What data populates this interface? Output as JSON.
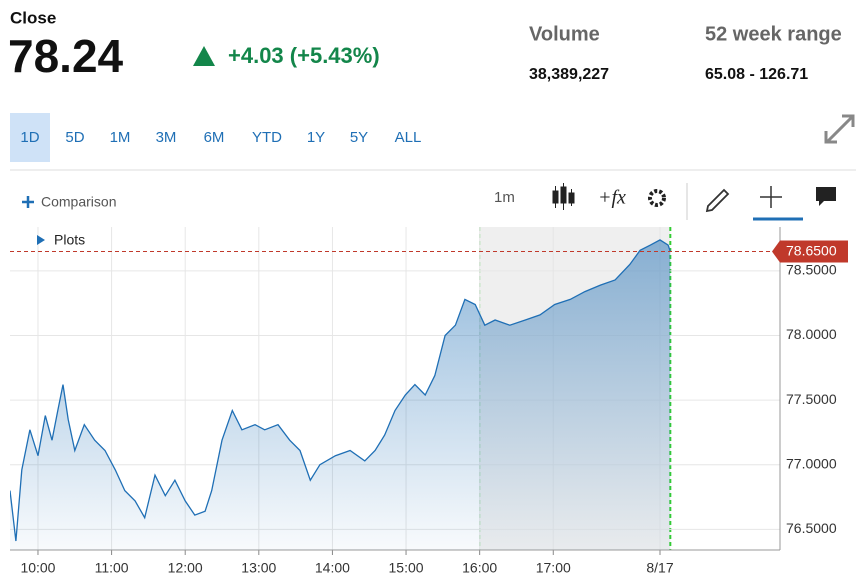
{
  "header": {
    "close_label": "Close",
    "price": "78.24",
    "change": "+4.03 (+5.43%)",
    "volume_label": "Volume",
    "volume": "38,389,227",
    "range_label": "52 week range",
    "range": "65.08 - 126.71"
  },
  "tabs": [
    "1D",
    "5D",
    "1M",
    "3M",
    "6M",
    "YTD",
    "1Y",
    "5Y",
    "ALL"
  ],
  "toolbar": {
    "comparison": "Comparison",
    "interval": "1m",
    "plots": "Plots"
  },
  "chart_data": {
    "type": "area",
    "series": [
      {
        "color": "#1f6fb5",
        "x": [
          9.62,
          9.7,
          9.78,
          9.89,
          10.0,
          10.1,
          10.19,
          10.27,
          10.34,
          10.41,
          10.5,
          10.63,
          10.77,
          10.91,
          11.05,
          11.18,
          11.32,
          11.45,
          11.59,
          11.73,
          11.86,
          12.0,
          12.13,
          12.27,
          12.36,
          12.5,
          12.64,
          12.77,
          12.95,
          13.08,
          13.26,
          13.42,
          13.56,
          13.7,
          13.83,
          14.04,
          14.24,
          14.44,
          14.58,
          14.71,
          14.85,
          14.99,
          15.12,
          15.26,
          15.39,
          15.53,
          15.67,
          15.8,
          15.94,
          16.07,
          16.21,
          16.41,
          16.62,
          16.82,
          17.02,
          17.23,
          17.43,
          17.64,
          17.84,
          18.04,
          18.18,
          18.32,
          18.45,
          18.56,
          18.59
        ],
        "values": [
          76.8,
          76.41,
          76.96,
          77.27,
          77.07,
          77.38,
          77.19,
          77.42,
          77.62,
          77.35,
          77.11,
          77.31,
          77.19,
          77.11,
          76.96,
          76.8,
          76.72,
          76.59,
          76.92,
          76.76,
          76.88,
          76.72,
          76.61,
          76.64,
          76.8,
          77.19,
          77.42,
          77.27,
          77.31,
          77.27,
          77.31,
          77.19,
          77.11,
          76.88,
          77.0,
          77.07,
          77.11,
          77.03,
          77.11,
          77.23,
          77.42,
          77.54,
          77.62,
          77.54,
          77.69,
          78.0,
          78.08,
          78.28,
          78.24,
          78.08,
          78.12,
          78.08,
          78.12,
          78.16,
          78.24,
          78.28,
          78.34,
          78.39,
          78.43,
          78.55,
          78.66,
          78.7,
          78.74,
          78.7,
          78.65
        ]
      }
    ],
    "xlim": [
      9.62,
      20.08
    ],
    "ylim": [
      76.34,
      78.84
    ],
    "xticks": [
      {
        "value": 10,
        "label": "10:00"
      },
      {
        "value": 11,
        "label": "11:00"
      },
      {
        "value": 12,
        "label": "12:00"
      },
      {
        "value": 13,
        "label": "13:00"
      },
      {
        "value": 14,
        "label": "14:00"
      },
      {
        "value": 15,
        "label": "15:00"
      },
      {
        "value": 16,
        "label": "16:00"
      },
      {
        "value": 17,
        "label": "17:00"
      },
      {
        "value": 18.45,
        "label": "8/17"
      }
    ],
    "yticks": [
      {
        "value": 76.5,
        "label": "76.5000"
      },
      {
        "value": 77.0,
        "label": "77.0000"
      },
      {
        "value": 77.5,
        "label": "77.5000"
      },
      {
        "value": 78.0,
        "label": "78.0000"
      },
      {
        "value": 78.5,
        "label": "78.5000"
      }
    ],
    "grid": true,
    "after_hours_xlim": [
      16,
      18.59
    ],
    "last_price": {
      "value": 78.65,
      "label": "78.6500"
    }
  }
}
